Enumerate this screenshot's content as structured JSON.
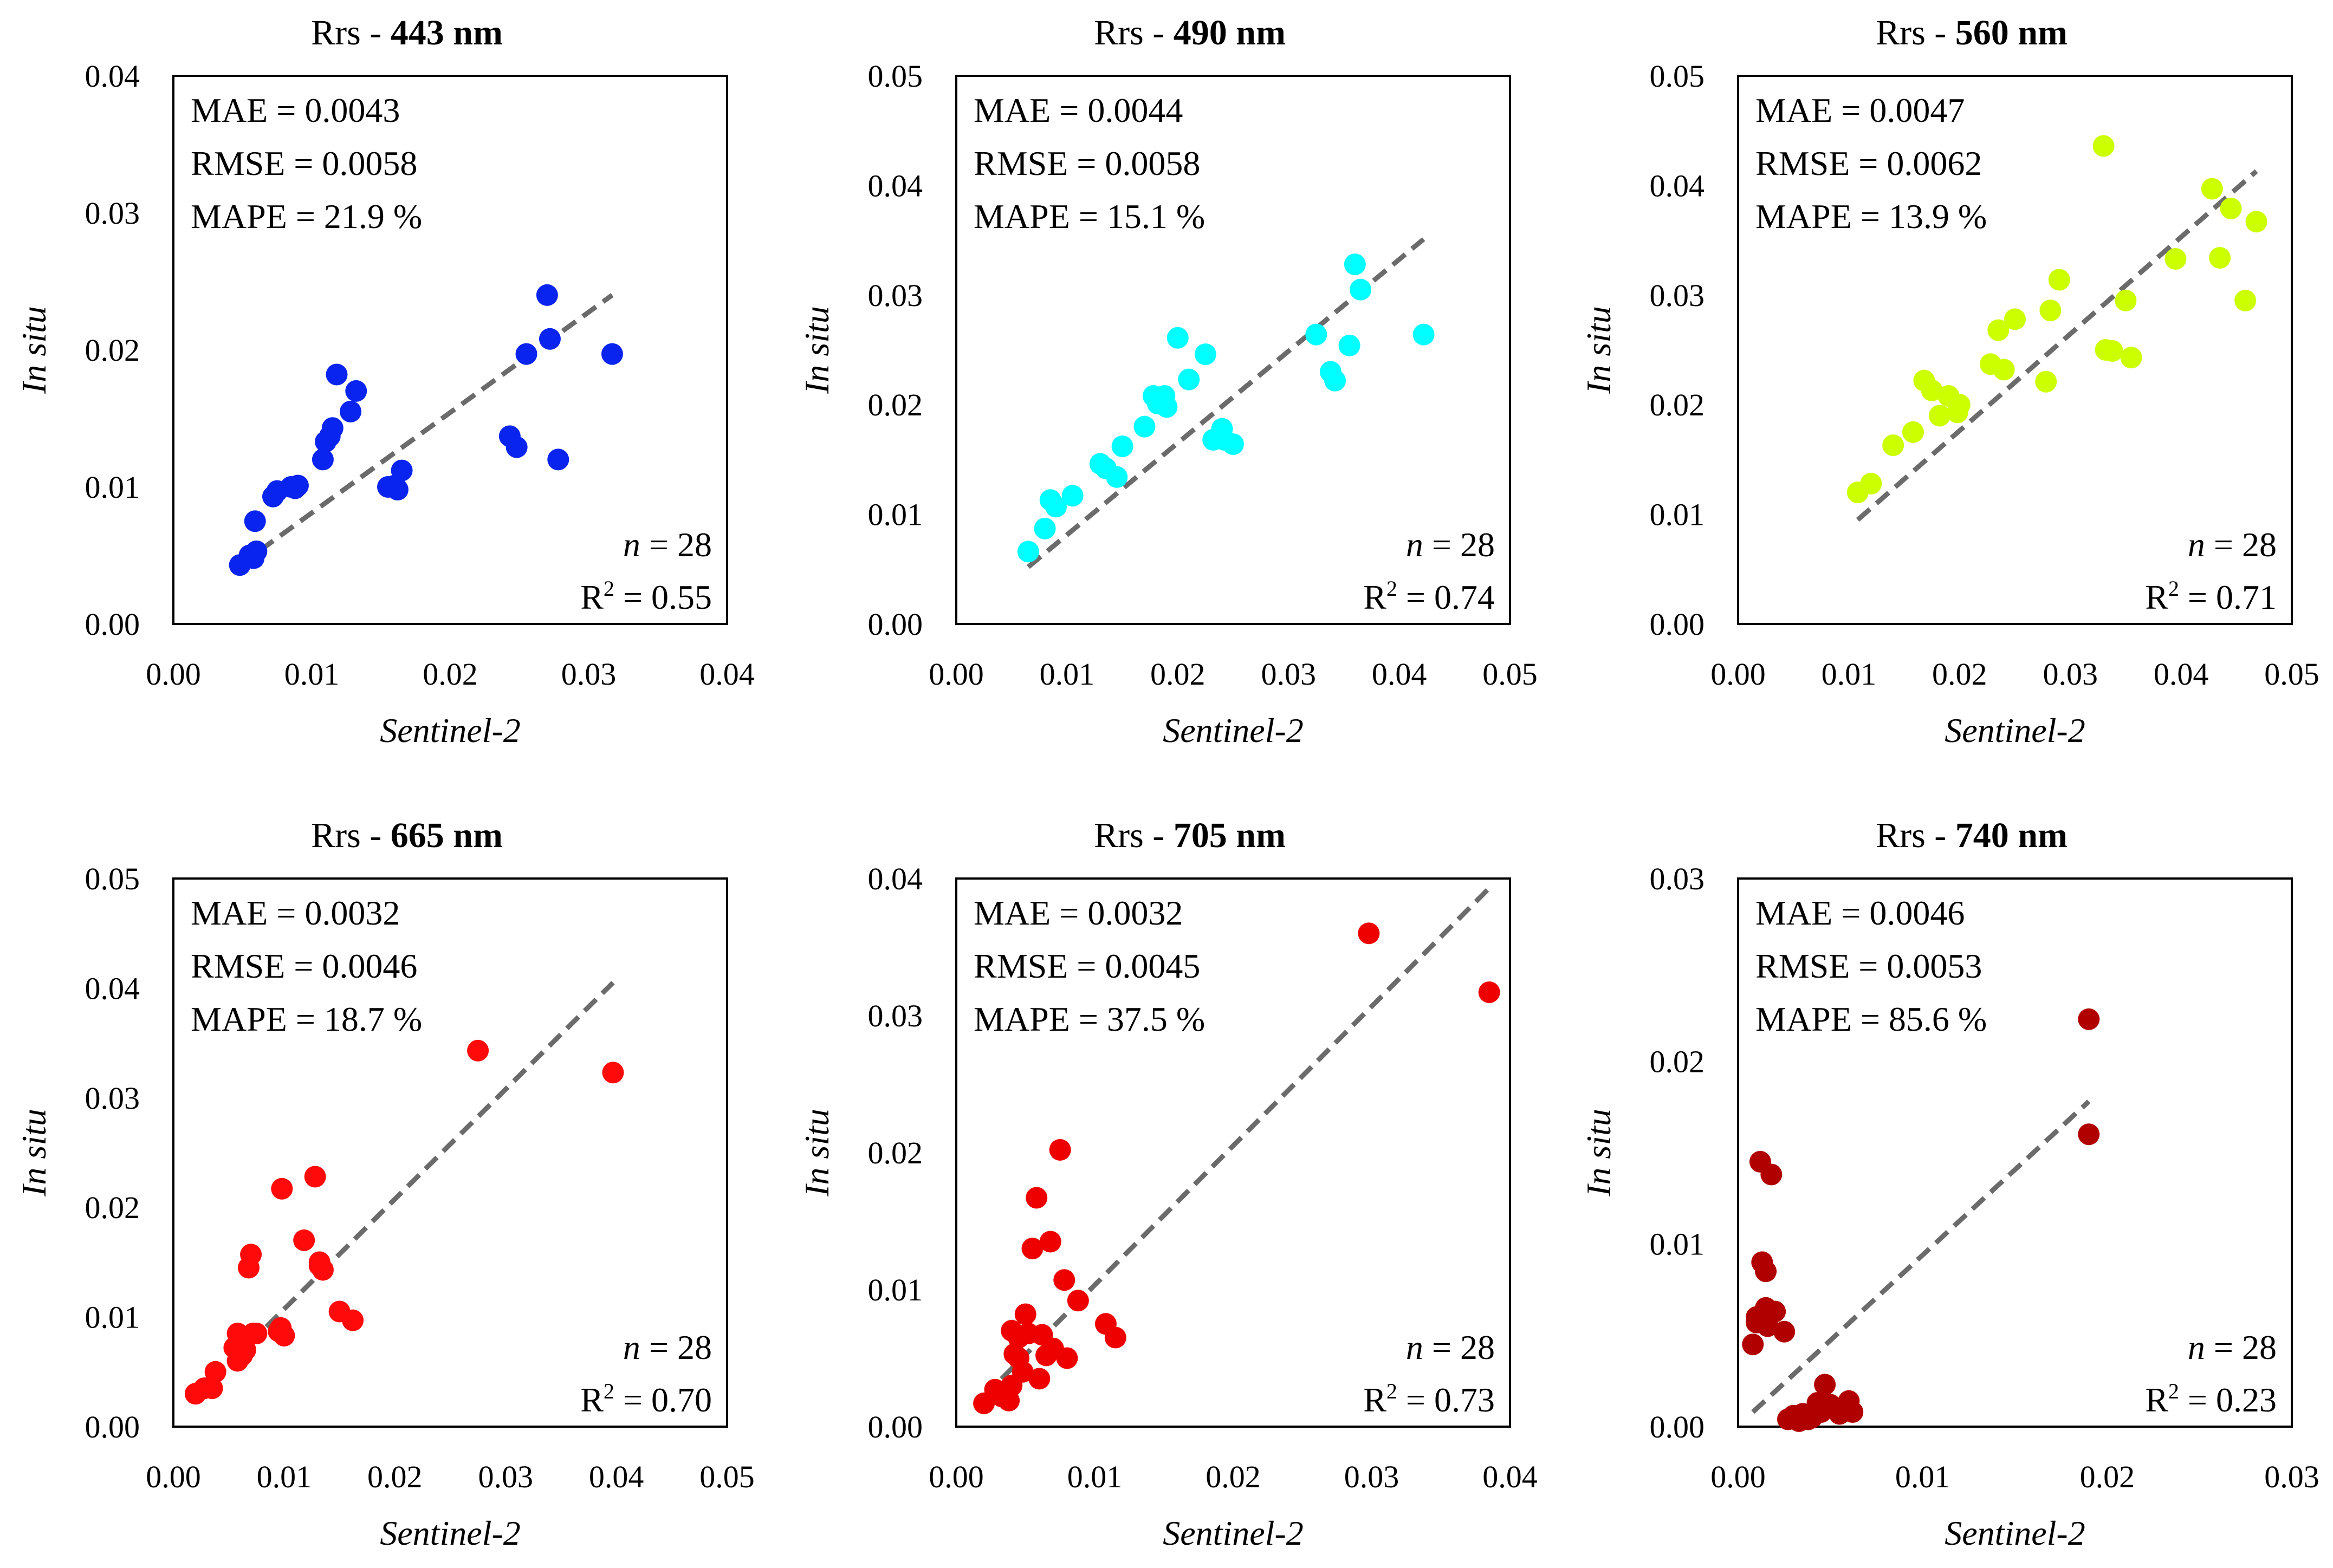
{
  "common": {
    "xlabel": "Sentinel-2",
    "ylabel": "In situ"
  },
  "chart_data": [
    {
      "type": "scatter",
      "title_prefix": "Rrs - ",
      "title_band": "443 nm",
      "xlabel": "Sentinel-2",
      "ylabel": "In situ",
      "xlim": [
        0,
        0.04
      ],
      "ylim": [
        0,
        0.04
      ],
      "xticks": [
        "0.00",
        "0.01",
        "0.02",
        "0.03",
        "0.04"
      ],
      "yticks": [
        "0.00",
        "0.01",
        "0.02",
        "0.03",
        "0.04"
      ],
      "color": "#0A24F0",
      "stats": {
        "mae": "MAE = 0.0043",
        "rmse": "RMSE = 0.0058",
        "mape": "MAPE = 21.9 %",
        "n_label": "n",
        "n_value": " = 28",
        "r2_label": "R",
        "r2_value": " = 0.55"
      },
      "fit_line": {
        "x": [
          0.0048,
          0.0317
        ],
        "y": [
          0.0043,
          0.024
        ]
      },
      "x": [
        0.0048,
        0.0055,
        0.0058,
        0.006,
        0.0059,
        0.0072,
        0.0075,
        0.0085,
        0.009,
        0.0108,
        0.011,
        0.0115,
        0.0118,
        0.0128,
        0.0132,
        0.0155,
        0.0162,
        0.0165,
        0.0243,
        0.0248,
        0.0255,
        0.027,
        0.0272,
        0.0278,
        0.0317,
        0.0113,
        0.0088,
        0.016
      ],
      "y": [
        0.0043,
        0.005,
        0.0048,
        0.0053,
        0.0075,
        0.0093,
        0.0097,
        0.01,
        0.0101,
        0.012,
        0.0133,
        0.0143,
        0.0182,
        0.0155,
        0.017,
        0.01,
        0.0098,
        0.0112,
        0.0137,
        0.0129,
        0.0197,
        0.024,
        0.0208,
        0.012,
        0.0197,
        0.0137,
        0.0099,
        0.0101
      ]
    },
    {
      "type": "scatter",
      "title_prefix": "Rrs - ",
      "title_band": "490 nm",
      "xlabel": "Sentinel-2",
      "ylabel": "In situ",
      "xlim": [
        0,
        0.05
      ],
      "ylim": [
        0,
        0.05
      ],
      "xticks": [
        "0.00",
        "0.01",
        "0.02",
        "0.03",
        "0.04",
        "0.05"
      ],
      "yticks": [
        "0.00",
        "0.01",
        "0.02",
        "0.03",
        "0.04",
        "0.05"
      ],
      "color": "#00FFFF",
      "stats": {
        "mae": "MAE = 0.0044",
        "rmse": "RMSE = 0.0058",
        "mape": "MAPE = 15.1 %",
        "n_label": "n",
        "n_value": " = 28",
        "r2_label": "R",
        "r2_value": " = 0.74"
      },
      "fit_line": {
        "x": [
          0.0065,
          0.0422
        ],
        "y": [
          0.0052,
          0.0351
        ]
      },
      "x": [
        0.0065,
        0.008,
        0.0085,
        0.009,
        0.0105,
        0.013,
        0.0135,
        0.0145,
        0.015,
        0.017,
        0.0178,
        0.0182,
        0.019,
        0.02,
        0.021,
        0.0225,
        0.0232,
        0.024,
        0.0242,
        0.025,
        0.0325,
        0.0338,
        0.0342,
        0.0355,
        0.036,
        0.0365,
        0.0422,
        0.0188
      ],
      "y": [
        0.0066,
        0.0087,
        0.0113,
        0.0107,
        0.0117,
        0.0146,
        0.0142,
        0.0134,
        0.0162,
        0.018,
        0.0208,
        0.0201,
        0.0198,
        0.0261,
        0.0223,
        0.0246,
        0.0168,
        0.0178,
        0.0168,
        0.0164,
        0.0264,
        0.023,
        0.0222,
        0.0254,
        0.0328,
        0.0305,
        0.0264,
        0.0208
      ]
    },
    {
      "type": "scatter",
      "title_prefix": "Rrs - ",
      "title_band": "560 nm",
      "xlabel": "Sentinel-2",
      "ylabel": "In situ",
      "xlim": [
        0,
        0.05
      ],
      "ylim": [
        0,
        0.05
      ],
      "xticks": [
        "0.00",
        "0.01",
        "0.02",
        "0.03",
        "0.04",
        "0.05"
      ],
      "yticks": [
        "0.00",
        "0.01",
        "0.02",
        "0.03",
        "0.04",
        "0.05"
      ],
      "color": "#CCFF00",
      "stats": {
        "mae": "MAE = 0.0047",
        "rmse": "RMSE = 0.0062",
        "mape": "MAPE = 13.9 %",
        "n_label": "n",
        "n_value": " = 28",
        "r2_label": "R",
        "r2_value": " = 0.71"
      },
      "fit_line": {
        "x": [
          0.0108,
          0.0468
        ],
        "y": [
          0.0095,
          0.0413
        ]
      },
      "x": [
        0.0108,
        0.012,
        0.014,
        0.0158,
        0.0168,
        0.0175,
        0.0182,
        0.019,
        0.0198,
        0.02,
        0.0228,
        0.0235,
        0.024,
        0.025,
        0.0278,
        0.0282,
        0.029,
        0.033,
        0.0332,
        0.0338,
        0.035,
        0.0355,
        0.0395,
        0.0428,
        0.0435,
        0.0445,
        0.0458,
        0.0468
      ],
      "y": [
        0.012,
        0.0128,
        0.0163,
        0.0175,
        0.0222,
        0.0213,
        0.019,
        0.0208,
        0.0193,
        0.02,
        0.0237,
        0.0268,
        0.0232,
        0.0278,
        0.0221,
        0.0286,
        0.0314,
        0.0436,
        0.025,
        0.0249,
        0.0295,
        0.0243,
        0.0333,
        0.0397,
        0.0334,
        0.0379,
        0.0295,
        0.0367
      ]
    },
    {
      "type": "scatter",
      "title_prefix": "Rrs - ",
      "title_band": "665 nm",
      "xlabel": "Sentinel-2",
      "ylabel": "In situ",
      "xlim": [
        0,
        0.05
      ],
      "ylim": [
        0,
        0.05
      ],
      "xticks": [
        "0.00",
        "0.01",
        "0.02",
        "0.03",
        "0.04",
        "0.05"
      ],
      "yticks": [
        "0.00",
        "0.01",
        "0.02",
        "0.03",
        "0.04",
        "0.05"
      ],
      "color": "#FF0A0A",
      "stats": {
        "mae": "MAE = 0.0032",
        "rmse": "RMSE = 0.0046",
        "mape": "MAPE = 18.7 %",
        "n_label": "n",
        "n_value": " = 28",
        "r2_label": "R",
        "r2_value": " = 0.70"
      },
      "fit_line": {
        "x": [
          0.002,
          0.0397
        ],
        "y": [
          0.0027,
          0.0405
        ]
      },
      "x": [
        0.002,
        0.0028,
        0.0035,
        0.0038,
        0.0055,
        0.0058,
        0.006,
        0.0062,
        0.0065,
        0.0068,
        0.007,
        0.0072,
        0.0075,
        0.0095,
        0.0098,
        0.01,
        0.0118,
        0.0128,
        0.0132,
        0.0135,
        0.015,
        0.0162,
        0.0275,
        0.0397,
        0.0058,
        0.0064,
        0.0132,
        0.0097
      ],
      "y": [
        0.003,
        0.0035,
        0.0035,
        0.005,
        0.0072,
        0.0085,
        0.008,
        0.0065,
        0.007,
        0.0145,
        0.0157,
        0.0085,
        0.0085,
        0.0087,
        0.0217,
        0.0083,
        0.017,
        0.0228,
        0.015,
        0.0143,
        0.0105,
        0.0097,
        0.0343,
        0.0323,
        0.006,
        0.008,
        0.0147,
        0.009
      ]
    },
    {
      "type": "scatter",
      "title_prefix": "Rrs - ",
      "title_band": "705 nm",
      "xlabel": "Sentinel-2",
      "ylabel": "In situ",
      "xlim": [
        0,
        0.04
      ],
      "ylim": [
        0,
        0.04
      ],
      "xticks": [
        "0.00",
        "0.01",
        "0.02",
        "0.03",
        "0.04"
      ],
      "yticks": [
        "0.00",
        "0.01",
        "0.02",
        "0.03",
        "0.04"
      ],
      "color": "#EE0000",
      "stats": {
        "mae": "MAE = 0.0032",
        "rmse": "RMSE = 0.0045",
        "mape": "MAPE = 37.5 %",
        "n_label": "n",
        "n_value": " = 28",
        "r2_label": "R",
        "r2_value": " = 0.73"
      },
      "fit_line": {
        "x": [
          0.002,
          0.0385
        ],
        "y": [
          0.0022,
          0.0393
        ]
      },
      "x": [
        0.002,
        0.0028,
        0.0035,
        0.0038,
        0.004,
        0.0042,
        0.0045,
        0.0048,
        0.005,
        0.0052,
        0.0055,
        0.0058,
        0.006,
        0.0065,
        0.0068,
        0.007,
        0.0075,
        0.0078,
        0.008,
        0.0088,
        0.0108,
        0.0115,
        0.0298,
        0.0385,
        0.0033,
        0.0045,
        0.0062,
        0.004
      ],
      "y": [
        0.0017,
        0.0027,
        0.0022,
        0.0019,
        0.007,
        0.0053,
        0.0065,
        0.004,
        0.0082,
        0.0068,
        0.013,
        0.0167,
        0.0035,
        0.0052,
        0.0135,
        0.0057,
        0.0202,
        0.0107,
        0.005,
        0.0092,
        0.0075,
        0.0065,
        0.036,
        0.0317,
        0.0022,
        0.005,
        0.0067,
        0.003
      ]
    },
    {
      "type": "scatter",
      "title_prefix": "Rrs - ",
      "title_band": "740 nm",
      "xlabel": "Sentinel-2",
      "ylabel": "In situ",
      "xlim": [
        0,
        0.03
      ],
      "ylim": [
        0,
        0.03
      ],
      "xticks": [
        "0.00",
        "0.01",
        "0.02",
        "0.03"
      ],
      "yticks": [
        "0.00",
        "0.01",
        "0.02",
        "0.03"
      ],
      "color": "#B00000",
      "stats": {
        "mae": "MAE = 0.0046",
        "rmse": "RMSE = 0.0053",
        "mape": "MAPE = 85.6 %",
        "n_label": "n",
        "n_value": " = 28",
        "r2_label": "R",
        "r2_value": " = 0.23"
      },
      "fit_line": {
        "x": [
          0.0008,
          0.019
        ],
        "y": [
          0.0008,
          0.0178
        ]
      },
      "x": [
        0.0008,
        0.001,
        0.0012,
        0.0013,
        0.0015,
        0.0016,
        0.0018,
        0.002,
        0.0025,
        0.0027,
        0.003,
        0.0033,
        0.0035,
        0.0038,
        0.004,
        0.0043,
        0.0045,
        0.0047,
        0.005,
        0.0052,
        0.0055,
        0.0058,
        0.006,
        0.0062,
        0.019,
        0.019,
        0.001,
        0.0015
      ],
      "y": [
        0.0045,
        0.0057,
        0.0145,
        0.009,
        0.0085,
        0.0055,
        0.0138,
        0.0063,
        0.0052,
        0.0004,
        0.0006,
        0.0003,
        0.0007,
        0.0004,
        0.0005,
        0.0013,
        0.0008,
        0.0023,
        0.0012,
        0.001,
        0.0007,
        0.0011,
        0.0014,
        0.0008,
        0.0223,
        0.016,
        0.006,
        0.0065
      ]
    }
  ]
}
